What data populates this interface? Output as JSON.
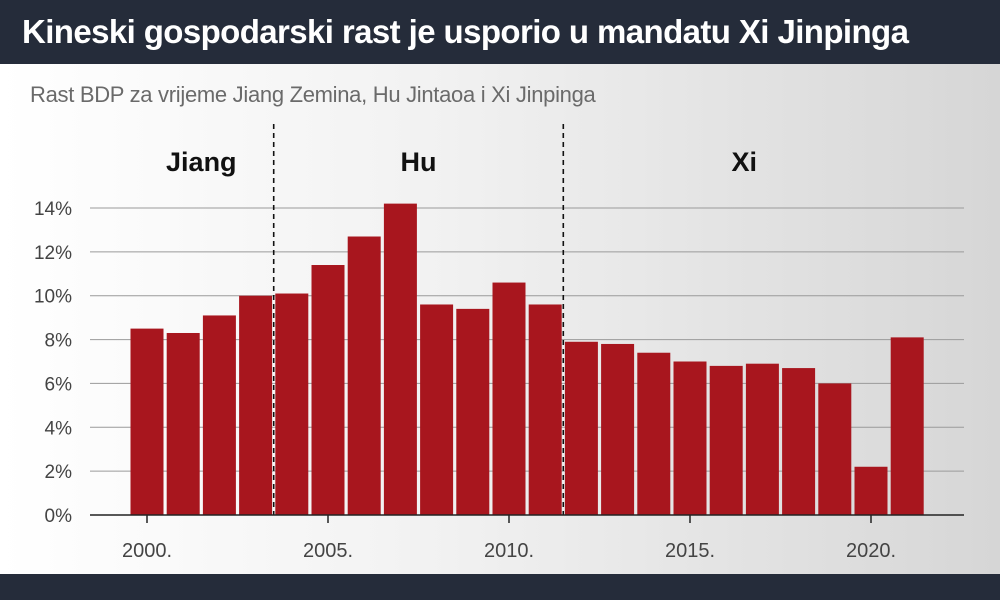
{
  "header": {
    "title": "Kineski gospodarski rast je usporio u mandatu Xi Jinpinga",
    "subtitle": "Rast BDP za vrijeme Jiang Zemina, Hu Jintaoa i Xi Jinpinga"
  },
  "colors": {
    "bar": "#a8161e",
    "header_bg": "#252c3a",
    "grid": "#9a9a9a",
    "axis": "#222222"
  },
  "chart_data": {
    "type": "bar",
    "title": "Kineski gospodarski rast je usporio u mandatu Xi Jinpinga",
    "subtitle": "Rast BDP za vrijeme Jiang Zemina, Hu Jintaoa i Xi Jinpinga",
    "x": [
      2000,
      2001,
      2002,
      2003,
      2004,
      2005,
      2006,
      2007,
      2008,
      2009,
      2010,
      2011,
      2012,
      2013,
      2014,
      2015,
      2016,
      2017,
      2018,
      2019,
      2020,
      2021
    ],
    "values": [
      8.5,
      8.3,
      9.1,
      10.0,
      10.1,
      11.4,
      12.7,
      14.2,
      9.6,
      9.4,
      10.6,
      9.6,
      7.9,
      7.8,
      7.4,
      7.0,
      6.8,
      6.9,
      6.7,
      6.0,
      2.2,
      8.1
    ],
    "unit": "%",
    "ylim": [
      0,
      14
    ],
    "y_ticks": [
      0,
      2,
      4,
      6,
      8,
      10,
      12,
      14
    ],
    "y_tick_labels": [
      "0%",
      "2%",
      "4%",
      "6%",
      "8%",
      "10%",
      "12%",
      "14%"
    ],
    "x_ticks": [
      2000,
      2005,
      2010,
      2015,
      2020
    ],
    "x_tick_labels": [
      "2000.",
      "2005.",
      "2010.",
      "2015.",
      "2020."
    ],
    "grid": true,
    "periods": [
      {
        "label": "Jiang",
        "start": 2000,
        "end": 2003
      },
      {
        "label": "Hu",
        "start": 2004,
        "end": 2011
      },
      {
        "label": "Xi",
        "start": 2012,
        "end": 2021
      }
    ],
    "dividers_after": [
      2003,
      2011
    ]
  }
}
